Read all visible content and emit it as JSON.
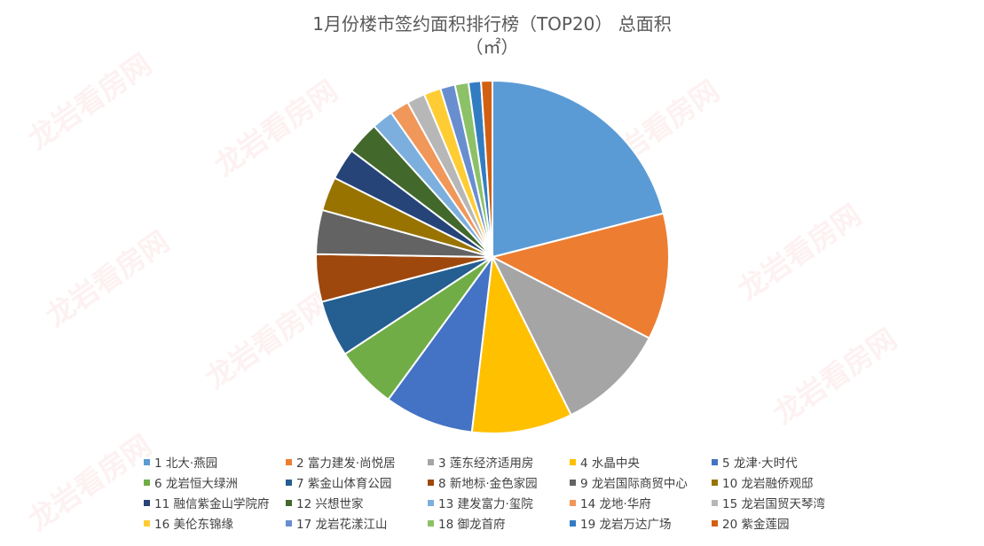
{
  "chart_data": {
    "type": "pie",
    "title": "1月份楼市签约面积排行榜（TOP20） 总面积",
    "subtitle": "（㎡）",
    "legend_position": "bottom",
    "categories": [
      "1 北大·燕园",
      "2 富力建发·尚悦居",
      "3 莲东经济适用房",
      "4 水晶中央",
      "5 龙津·大时代",
      "6 龙岩恒大绿洲",
      "7 紫金山体育公园",
      "8 新地标·金色家园",
      "9 龙岩国际商贸中心",
      "10 龙岩融侨观邸",
      "11 融信紫金山学院府",
      "12 兴想世家",
      "13 建发富力·玺院",
      "14 龙地·华府",
      "15 龙岩国贸天琴湾",
      "16 美伦东锦缘",
      "17 龙岩花漾江山",
      "18 御龙首府",
      "19 龙岩万达广场",
      "20 紫金莲园"
    ],
    "values": [
      20.3,
      11.2,
      9.7,
      8.9,
      7.9,
      5.5,
      5.0,
      4.2,
      3.9,
      3.0,
      2.8,
      2.9,
      1.9,
      1.7,
      1.6,
      1.5,
      1.3,
      1.2,
      1.1,
      1.0
    ],
    "colors": [
      "#5B9BD5",
      "#ED7D31",
      "#A5A5A5",
      "#FFC000",
      "#4472C4",
      "#70AD47",
      "#255E91",
      "#9E480E",
      "#636363",
      "#997300",
      "#264478",
      "#43682B",
      "#7CAFDD",
      "#F1975A",
      "#B7B7B7",
      "#FFCD33",
      "#698ED0",
      "#8CC168",
      "#327DC2",
      "#D26012"
    ]
  }
}
